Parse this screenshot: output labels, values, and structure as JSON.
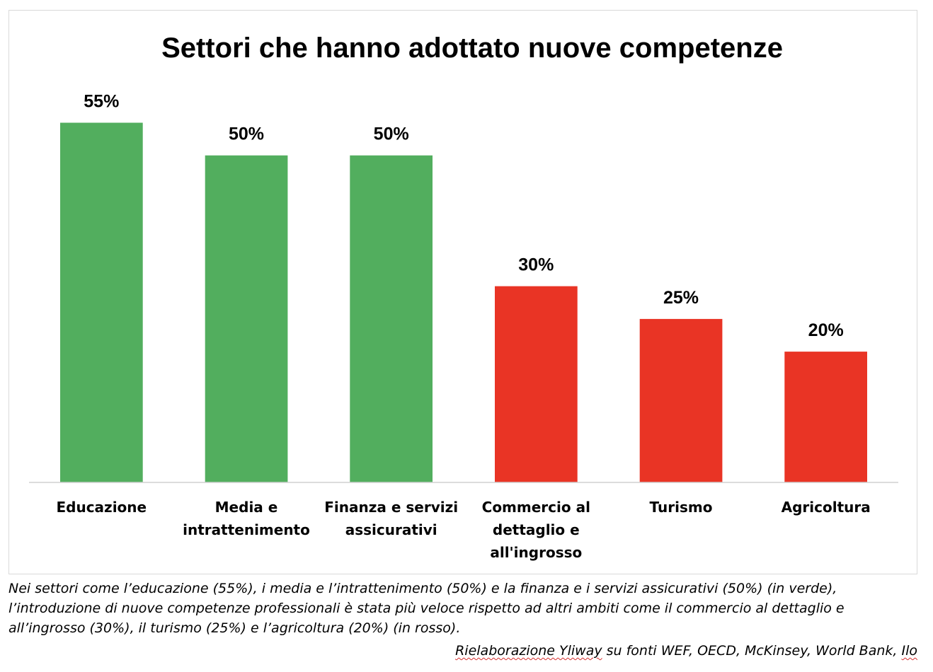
{
  "chart_data": {
    "type": "bar",
    "title": "Settori che hanno adottato nuove competenze",
    "categories": [
      [
        "Educazione"
      ],
      [
        "Media e",
        "intrattenimento"
      ],
      [
        "Finanza e servizi",
        "assicurativi"
      ],
      [
        "Commercio al",
        "dettaglio e",
        "all'ingrosso"
      ],
      [
        "Turismo"
      ],
      [
        "Agricoltura"
      ]
    ],
    "values": [
      55,
      50,
      50,
      30,
      25,
      20
    ],
    "data_labels": [
      "55%",
      "50%",
      "50%",
      "30%",
      "25%",
      "20%"
    ],
    "colors": [
      "#52AE5E",
      "#52AE5E",
      "#52AE5E",
      "#E93425",
      "#E93425",
      "#E93425"
    ],
    "ylim": [
      0,
      57
    ],
    "xlabel": "",
    "ylabel": "",
    "grid": false,
    "legend": "none"
  },
  "caption": "Nei settori come l’educazione (55%), i media e l’intrattenimento (50%) e la finanza e i servizi assicurativi (50%) (in verde), l’introduzione di nuove competenze professionali è stata più veloce rispetto ad altri ambiti come il commercio al dettaglio e all’ingrosso (30%), il turismo (25%) e l’agricoltura (20%) (in rosso).",
  "source": {
    "prefix": "Rielaborazione Yliway",
    "middle": " su fonti WEF, OECD, McKinsey, World Bank, ",
    "suffix": "Ilo"
  }
}
